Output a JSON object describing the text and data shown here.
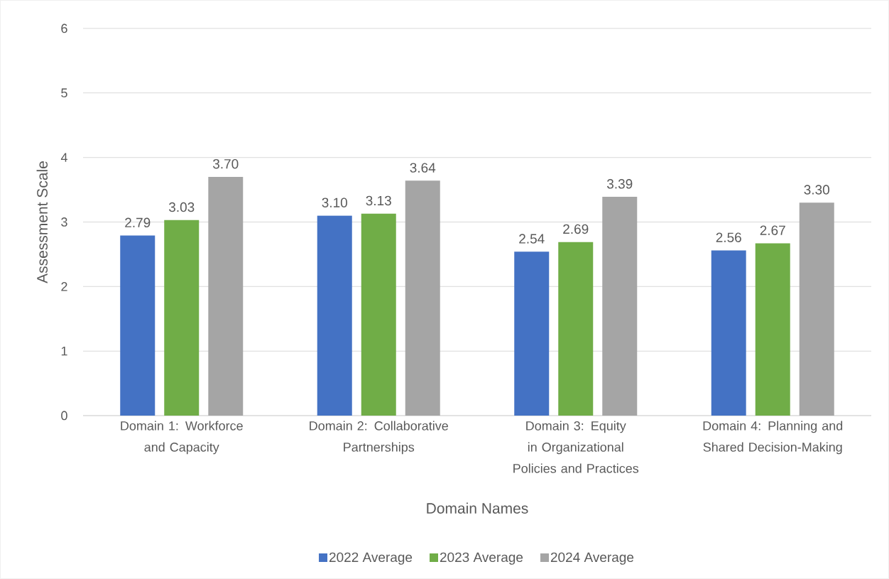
{
  "chart_data": {
    "type": "bar",
    "xlabel": "Domain Names",
    "ylabel": "Assessment Scale",
    "categories": [
      "Domain 1: Workforce and Capacity",
      "Domain 2: Collaborative Partnerships",
      "Domain 3: Equity in Organizational Policies and Practices",
      "Domain 4: Planning and Shared Decision-Making"
    ],
    "series": [
      {
        "name": "2022 Average",
        "color": "#4472c4",
        "values": [
          2.79,
          3.1,
          2.54,
          2.56
        ],
        "value_labels": [
          "2.79",
          "3.10",
          "2.54",
          "2.56"
        ]
      },
      {
        "name": "2023 Average",
        "color": "#70ad47",
        "values": [
          3.03,
          3.13,
          2.69,
          2.67
        ],
        "value_labels": [
          "3.03",
          "3.13",
          "2.69",
          "2.67"
        ]
      },
      {
        "name": "2024 Average",
        "color": "#a5a5a5",
        "values": [
          3.7,
          3.64,
          3.39,
          3.3
        ],
        "value_labels": [
          "3.70",
          "3.64",
          "3.39",
          "3.30"
        ]
      }
    ],
    "ylim": [
      0,
      6
    ],
    "yticks": [
      0,
      1,
      2,
      3,
      4,
      5,
      6
    ],
    "grid": "y",
    "legend": "bottom"
  }
}
